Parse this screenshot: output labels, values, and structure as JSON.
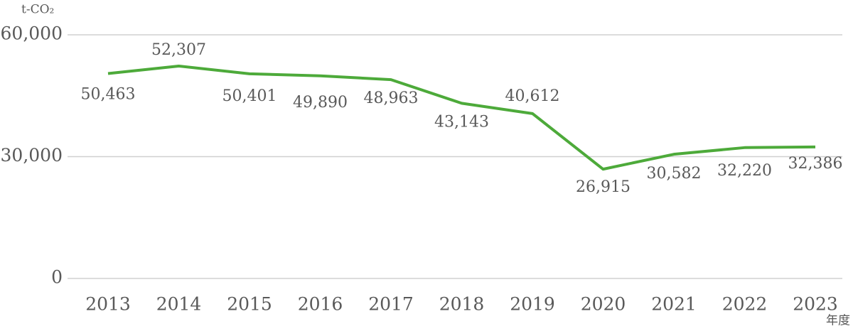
{
  "chart_data": {
    "type": "line",
    "y_label": "t-CO₂",
    "x_label": "年度",
    "categories": [
      "2013",
      "2014",
      "2015",
      "2016",
      "2017",
      "2018",
      "2019",
      "2020",
      "2021",
      "2022",
      "2023"
    ],
    "series": [
      {
        "color": "#4daa3a",
        "values": [
          50463,
          52307,
          50401,
          49890,
          48963,
          43143,
          40612,
          26915,
          30582,
          32220,
          32386
        ],
        "value_labels": [
          "50,463",
          "52,307",
          "50,401",
          "49,890",
          "48,963",
          "43,143",
          "40,612",
          "26,915",
          "30,582",
          "32,220",
          "32,386"
        ]
      }
    ],
    "ylim": [
      0,
      60000
    ],
    "yticks": [
      0,
      {
        "value": 30000,
        "label": "30,000"
      },
      {
        "value": 60000,
        "label": "60,000"
      }
    ],
    "grid": true
  }
}
